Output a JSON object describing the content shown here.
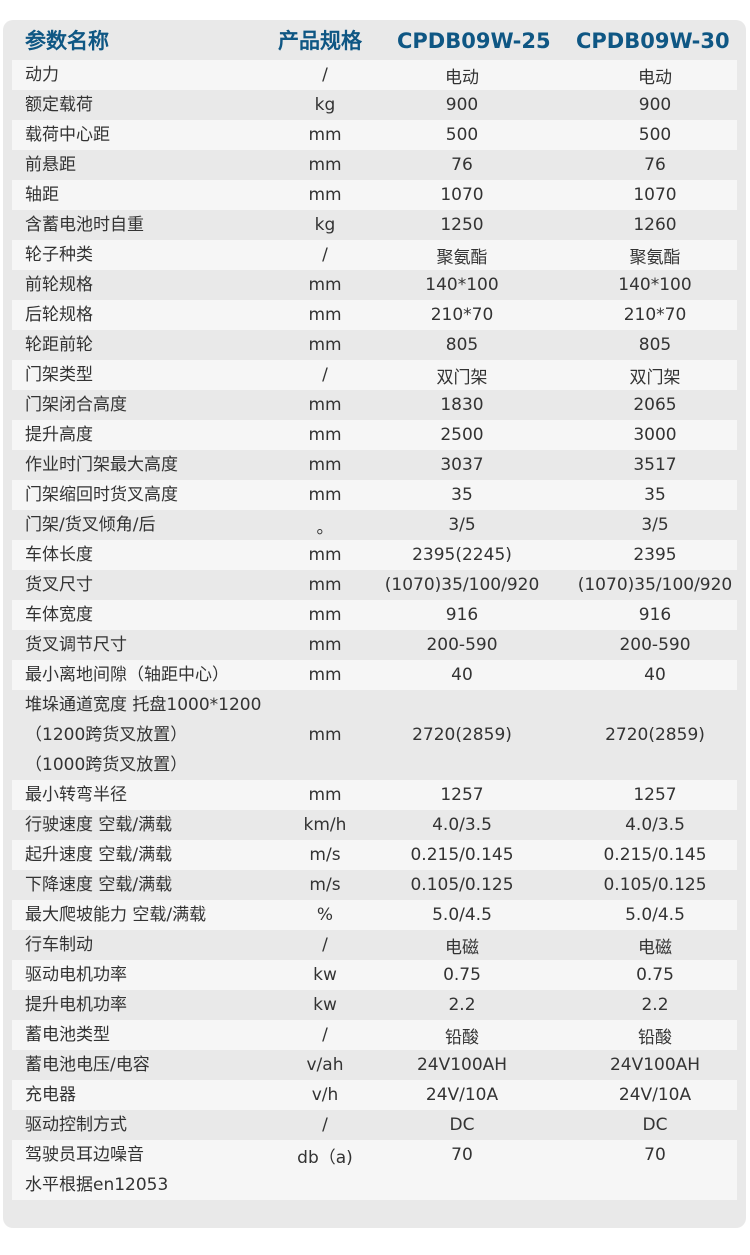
{
  "header": {
    "name": "参数名称",
    "spec": "产品规格",
    "model_a": "CPDB09W-25",
    "model_b": "CPDB09W-30"
  },
  "colors": {
    "header_text": "#0f5784",
    "panel_bg": "#e9e9e9",
    "row_light": "#f6f6f6",
    "text": "#333333"
  },
  "rows": [
    {
      "label": [
        "动力"
      ],
      "unit": "/",
      "a": "电动",
      "b": "电动"
    },
    {
      "label": [
        "额定载荷"
      ],
      "unit": "kg",
      "a": "900",
      "b": "900"
    },
    {
      "label": [
        "载荷中心距"
      ],
      "unit": "mm",
      "a": "500",
      "b": "500"
    },
    {
      "label": [
        "前悬距"
      ],
      "unit": "mm",
      "a": "76",
      "b": "76"
    },
    {
      "label": [
        "轴距"
      ],
      "unit": "mm",
      "a": "1070",
      "b": "1070"
    },
    {
      "label": [
        "含蓄电池时自重"
      ],
      "unit": "kg",
      "a": "1250",
      "b": "1260"
    },
    {
      "label": [
        "轮子种类"
      ],
      "unit": "/",
      "a": "聚氨酯",
      "b": "聚氨酯"
    },
    {
      "label": [
        "前轮规格"
      ],
      "unit": "mm",
      "a": "140*100",
      "b": "140*100"
    },
    {
      "label": [
        "后轮规格"
      ],
      "unit": "mm",
      "a": "210*70",
      "b": "210*70"
    },
    {
      "label": [
        "轮距前轮"
      ],
      "unit": "mm",
      "a": "805",
      "b": "805"
    },
    {
      "label": [
        "门架类型"
      ],
      "unit": "/",
      "a": "双门架",
      "b": "双门架"
    },
    {
      "label": [
        "门架闭合高度"
      ],
      "unit": "mm",
      "a": "1830",
      "b": "2065"
    },
    {
      "label": [
        "提升高度"
      ],
      "unit": "mm",
      "a": "2500",
      "b": "3000"
    },
    {
      "label": [
        "作业时门架最大高度"
      ],
      "unit": "mm",
      "a": "3037",
      "b": "3517"
    },
    {
      "label": [
        "门架缩回时货叉高度"
      ],
      "unit": "mm",
      "a": "35",
      "b": "35"
    },
    {
      "label": [
        "门架/货叉倾角/后"
      ],
      "unit": "。",
      "a": "3/5",
      "b": "3/5"
    },
    {
      "label": [
        "车体长度"
      ],
      "unit": "mm",
      "a": "2395(2245)",
      "b": "2395"
    },
    {
      "label": [
        "货叉尺寸"
      ],
      "unit": "mm",
      "a": "(1070)35/100/920",
      "b": "(1070)35/100/920"
    },
    {
      "label": [
        "车体宽度"
      ],
      "unit": "mm",
      "a": "916",
      "b": "916"
    },
    {
      "label": [
        "货叉调节尺寸"
      ],
      "unit": "mm",
      "a": "200-590",
      "b": "200-590"
    },
    {
      "label": [
        "最小离地间隙（轴距中心）"
      ],
      "unit": "mm",
      "a": "40",
      "b": "40"
    },
    {
      "label": [
        "堆垛通道宽度 托盘1000*1200",
        "（1200跨货叉放置）",
        "（1000跨货叉放置）"
      ],
      "unit": "mm",
      "a": "2720(2859)",
      "b": "2720(2859)"
    },
    {
      "label": [
        "最小转弯半径"
      ],
      "unit": "mm",
      "a": "1257",
      "b": "1257"
    },
    {
      "label": [
        "行驶速度 空载/满载"
      ],
      "unit": "km/h",
      "a": "4.0/3.5",
      "b": "4.0/3.5"
    },
    {
      "label": [
        "起升速度 空载/满载"
      ],
      "unit": "m/s",
      "a": "0.215/0.145",
      "b": "0.215/0.145"
    },
    {
      "label": [
        "下降速度 空载/满载"
      ],
      "unit": "m/s",
      "a": "0.105/0.125",
      "b": "0.105/0.125"
    },
    {
      "label": [
        "最大爬坡能力 空载/满载"
      ],
      "unit": "%",
      "a": "5.0/4.5",
      "b": "5.0/4.5"
    },
    {
      "label": [
        "行车制动"
      ],
      "unit": "/",
      "a": "电磁",
      "b": "电磁"
    },
    {
      "label": [
        "驱动电机功率"
      ],
      "unit": "kw",
      "a": "0.75",
      "b": "0.75"
    },
    {
      "label": [
        "提升电机功率"
      ],
      "unit": "kw",
      "a": "2.2",
      "b": "2.2"
    },
    {
      "label": [
        "蓄电池类型"
      ],
      "unit": "/",
      "a": "铅酸",
      "b": "铅酸"
    },
    {
      "label": [
        "蓄电池电压/电容"
      ],
      "unit": "v/ah",
      "a": "24V100AH",
      "b": "24V100AH"
    },
    {
      "label": [
        "充电器"
      ],
      "unit": "v/h",
      "a": "24V/10A",
      "b": "24V/10A"
    },
    {
      "label": [
        "驱动控制方式"
      ],
      "unit": "/",
      "a": "DC",
      "b": "DC"
    },
    {
      "label": [
        "驾驶员耳边噪音",
        "水平根据en12053"
      ],
      "unit": "db（a)",
      "a": "70",
      "b": "70"
    }
  ]
}
